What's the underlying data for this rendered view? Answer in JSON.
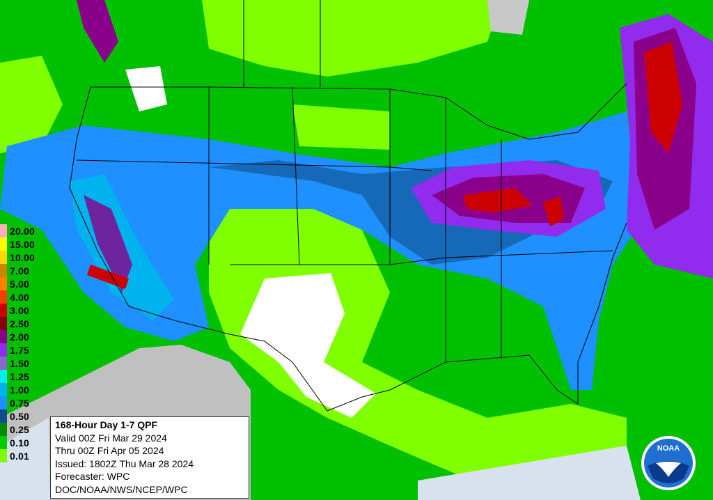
{
  "legend": {
    "items": [
      {
        "label": "20.00",
        "color": "#ffaeb9"
      },
      {
        "label": "15.00",
        "color": "#ffff00"
      },
      {
        "label": "10.00",
        "color": "#ffd700"
      },
      {
        "label": "7.00",
        "color": "#cd8500"
      },
      {
        "label": "5.00",
        "color": "#ff7f00"
      },
      {
        "label": "4.00",
        "color": "#ee4000"
      },
      {
        "label": "3.00",
        "color": "#cd0000"
      },
      {
        "label": "2.50",
        "color": "#8b0000"
      },
      {
        "label": "2.00",
        "color": "#8b008b"
      },
      {
        "label": "1.75",
        "color": "#912cee"
      },
      {
        "label": "1.50",
        "color": "#8968cd"
      },
      {
        "label": "1.25",
        "color": "#00eeee"
      },
      {
        "label": "1.00",
        "color": "#00b2ee"
      },
      {
        "label": "0.75",
        "color": "#1e90ff"
      },
      {
        "label": "0.50",
        "color": "#104e8b"
      },
      {
        "label": "0.25",
        "color": "#008b00"
      },
      {
        "label": "0.10",
        "color": "#00cd00"
      },
      {
        "label": "0.01",
        "color": "#7fff00"
      }
    ]
  },
  "info": {
    "title": "168-Hour Day 1-7 QPF",
    "lines": [
      "Valid 00Z Fri Mar 29 2024",
      "Thru 00Z Fri Apr 05 2024",
      "Issued: 1802Z Thu Mar 28 2024",
      "Forecaster: WPC",
      "DOC/NOAA/NWS/NCEP/WPC"
    ]
  },
  "logo": {
    "text": "NOAA"
  }
}
